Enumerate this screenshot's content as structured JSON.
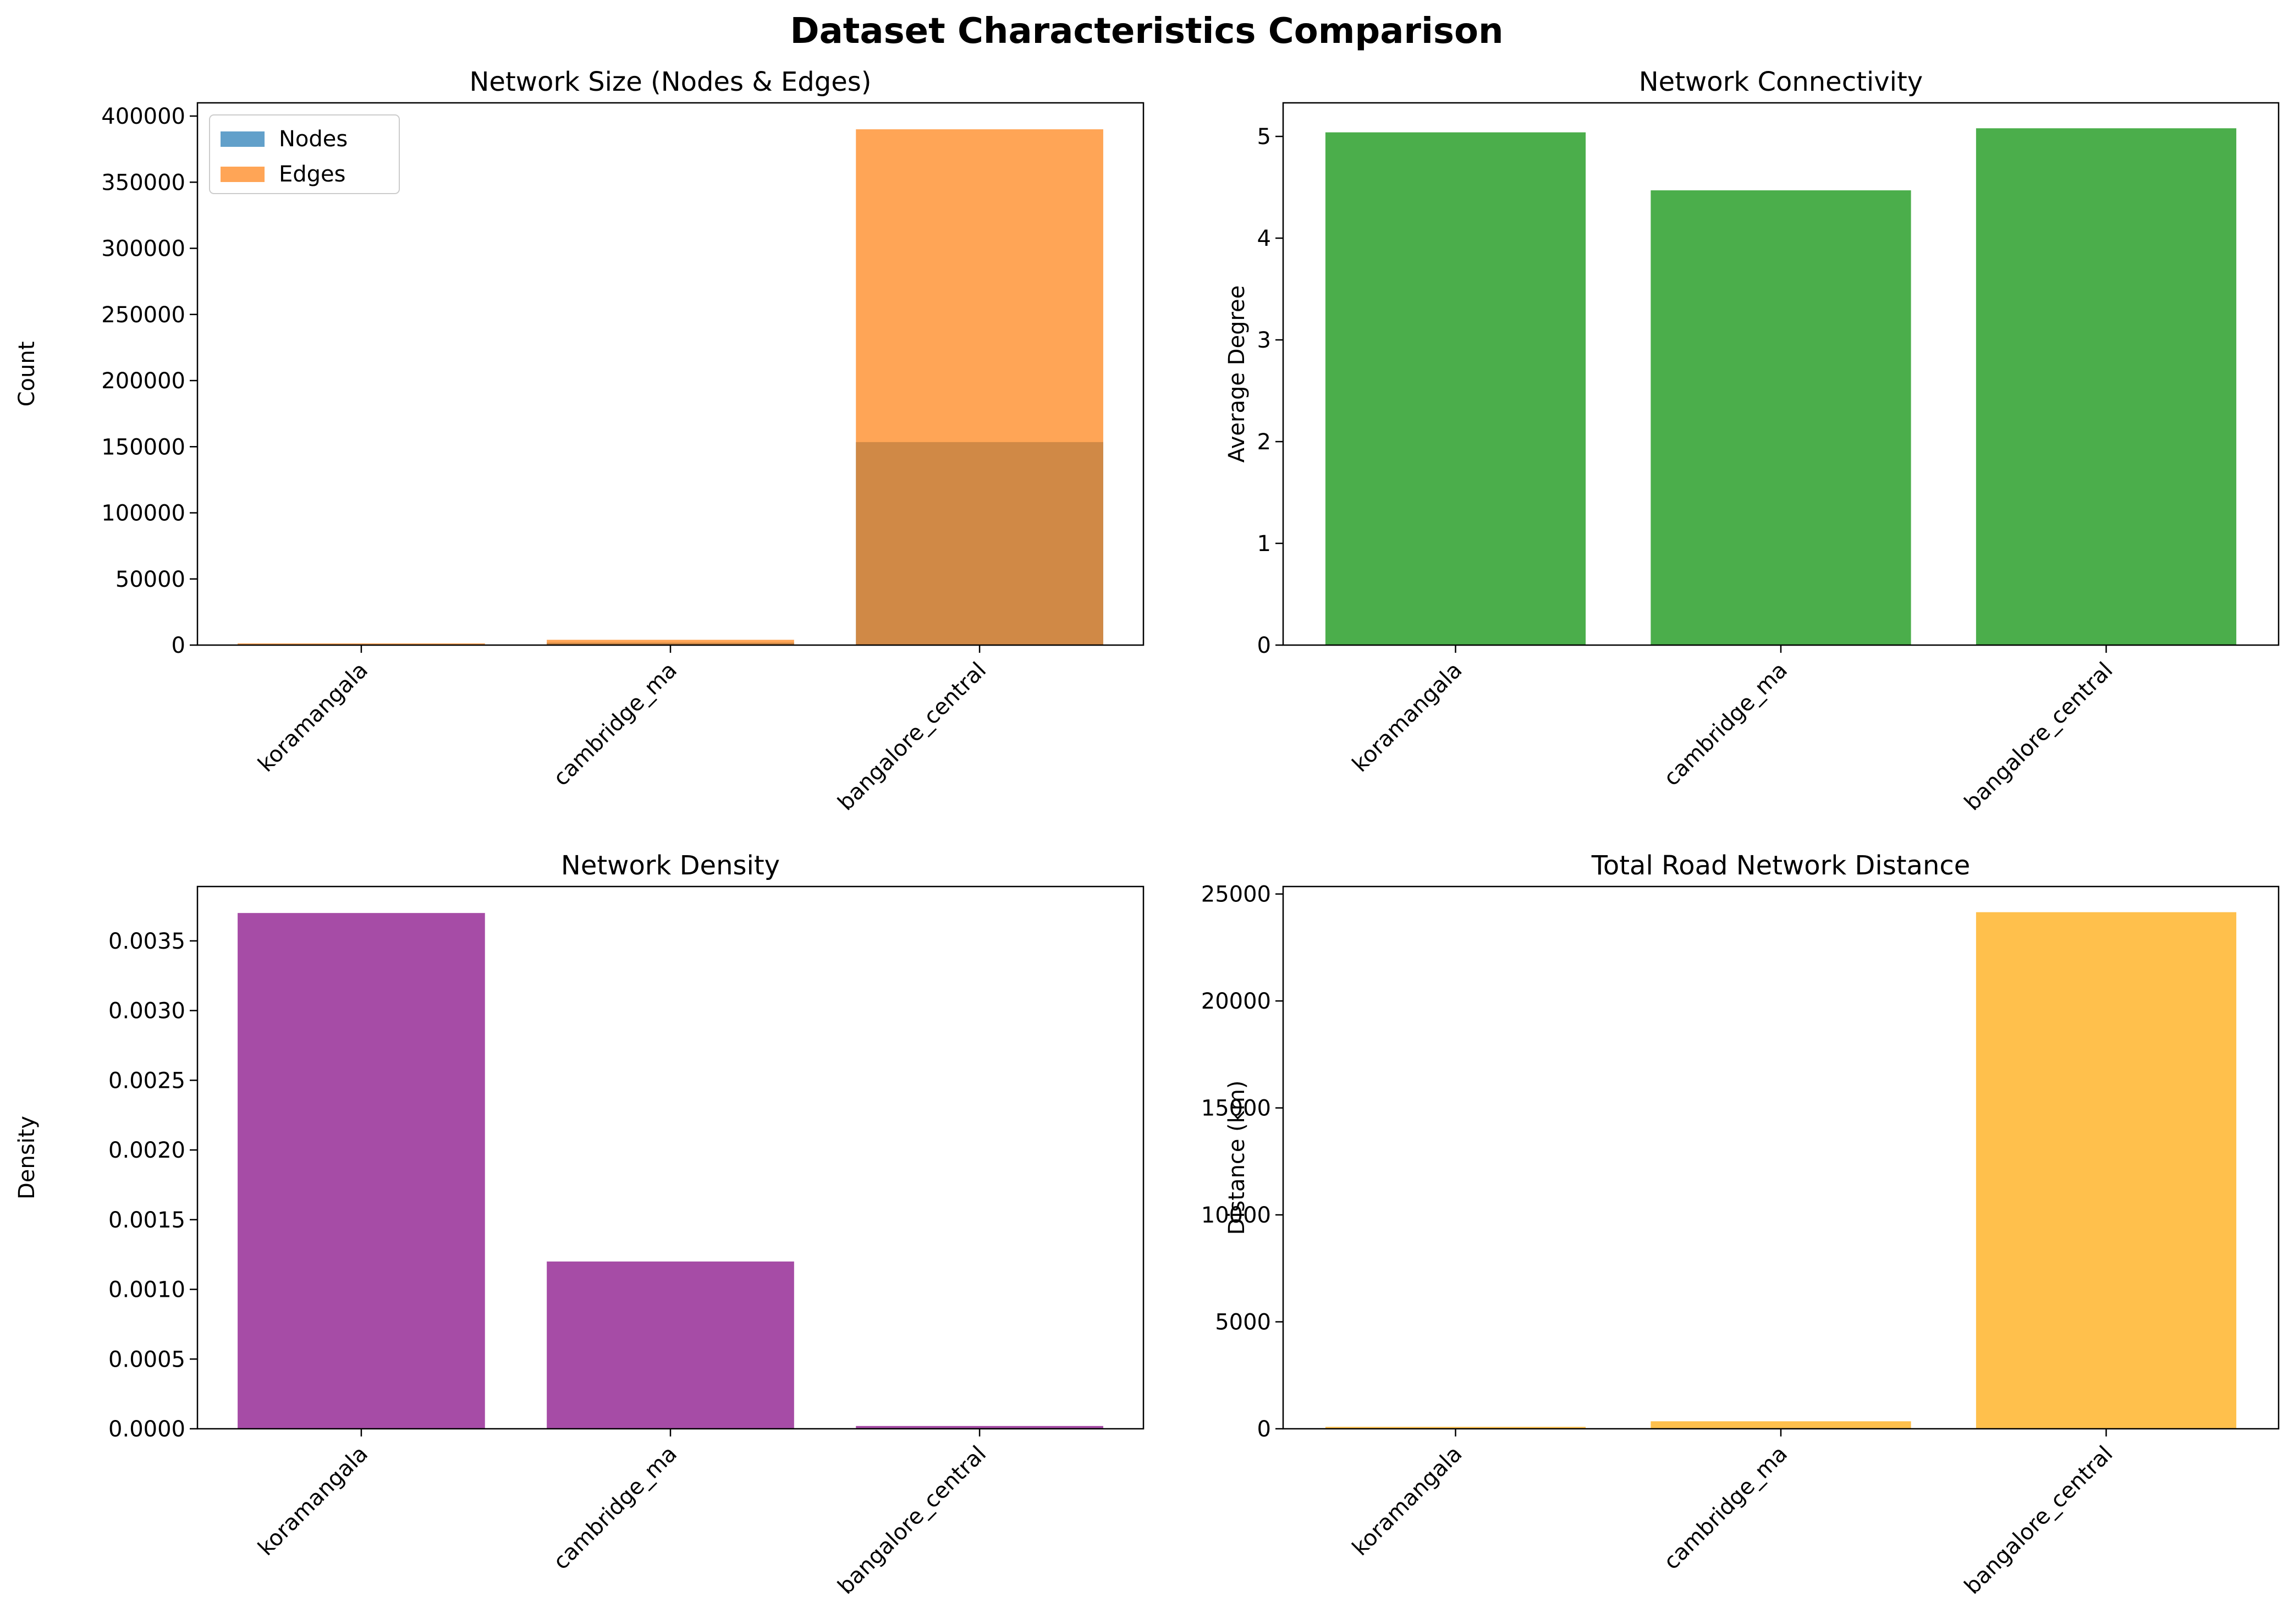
{
  "figure": {
    "title": "Dataset Characteristics Comparison"
  },
  "chart_data": [
    {
      "type": "bar",
      "title": "Network Size (Nodes & Edges)",
      "xlabel": "",
      "ylabel": "Count",
      "categories": [
        "koramangala",
        "cambridge_ma",
        "bangalore_central"
      ],
      "series": [
        {
          "name": "Nodes",
          "values": [
            500,
            1800,
            153500
          ],
          "color": "#1f77b4",
          "alpha": 0.7
        },
        {
          "name": "Edges",
          "values": [
            1300,
            4000,
            390000
          ],
          "color": "#ff7f0e",
          "alpha": 0.7
        }
      ],
      "ylim": [
        0,
        410000
      ],
      "yticks": [
        0,
        50000,
        100000,
        150000,
        200000,
        250000,
        300000,
        350000,
        400000
      ],
      "legend": "upper-left",
      "grid": false
    },
    {
      "type": "bar",
      "title": "Network Connectivity",
      "xlabel": "",
      "ylabel": "Average Degree",
      "categories": [
        "koramangala",
        "cambridge_ma",
        "bangalore_central"
      ],
      "values": [
        5.04,
        4.47,
        5.08
      ],
      "color": "#2ca02c",
      "alpha": 0.85,
      "ylim": [
        0,
        5.33
      ],
      "yticks": [
        0,
        1,
        2,
        3,
        4,
        5
      ],
      "grid": false
    },
    {
      "type": "bar",
      "title": "Network Density",
      "xlabel": "",
      "ylabel": "Density",
      "categories": [
        "koramangala",
        "cambridge_ma",
        "bangalore_central"
      ],
      "values": [
        0.0037,
        0.0012,
        2e-05
      ],
      "color": "#800080",
      "alpha": 0.7,
      "ylim": [
        0,
        0.00389
      ],
      "yticks": [
        "0.0000",
        "0.0005",
        "0.0010",
        "0.0015",
        "0.0020",
        "0.0025",
        "0.0030",
        "0.0035"
      ],
      "grid": false
    },
    {
      "type": "bar",
      "title": "Total Road Network Distance",
      "xlabel": "",
      "ylabel": "Distance (km)",
      "categories": [
        "koramangala",
        "cambridge_ma",
        "bangalore_central"
      ],
      "values": [
        90,
        350,
        24150
      ],
      "color": "#ffa500",
      "alpha": 0.7,
      "ylim": [
        0,
        25350
      ],
      "yticks": [
        0,
        5000,
        10000,
        15000,
        20000,
        25000
      ],
      "grid": false
    }
  ]
}
